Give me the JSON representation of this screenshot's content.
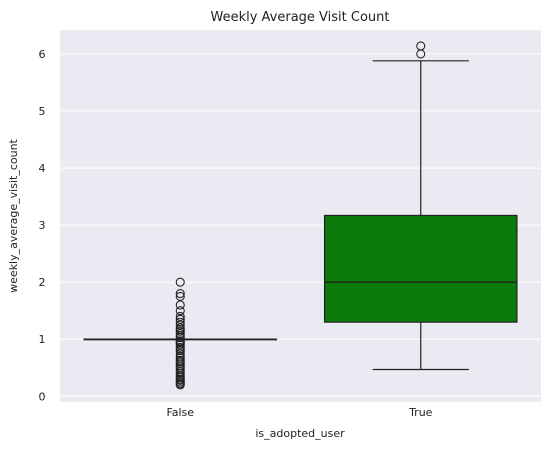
{
  "chart_data": {
    "type": "box",
    "title": "Weekly Average Visit Count",
    "xlabel": "is_adopted_user",
    "ylabel": "weekly_average_visit_count",
    "categories": [
      "False",
      "True"
    ],
    "ylim": [
      -0.1,
      6.42
    ],
    "yticks": [
      0,
      1,
      2,
      3,
      4,
      5,
      6
    ],
    "grid": true,
    "colors": {
      "background": "#eaeaf2",
      "grid": "#ffffff",
      "box_line": "#222222",
      "true_box_fill": "#0a7a0a"
    },
    "boxes": [
      {
        "category": "False",
        "q1": 1.0,
        "median": 1.0,
        "q3": 1.0,
        "whisker_low": 1.0,
        "whisker_high": 1.0,
        "outliers": [
          0.2,
          0.22,
          0.25,
          0.28,
          0.3,
          0.33,
          0.36,
          0.4,
          0.43,
          0.47,
          0.5,
          0.53,
          0.57,
          0.6,
          0.63,
          0.67,
          0.7,
          0.75,
          0.8,
          0.83,
          0.86,
          0.9,
          0.93,
          0.95,
          0.97,
          1.03,
          1.06,
          1.1,
          1.14,
          1.17,
          1.2,
          1.25,
          1.3,
          1.35,
          1.4,
          1.5,
          1.6,
          1.75,
          1.8,
          2.0
        ]
      },
      {
        "category": "True",
        "q1": 1.3,
        "median": 2.0,
        "q3": 3.17,
        "whisker_low": 0.47,
        "whisker_high": 5.88,
        "outliers": [
          6.0,
          6.14
        ]
      }
    ]
  }
}
